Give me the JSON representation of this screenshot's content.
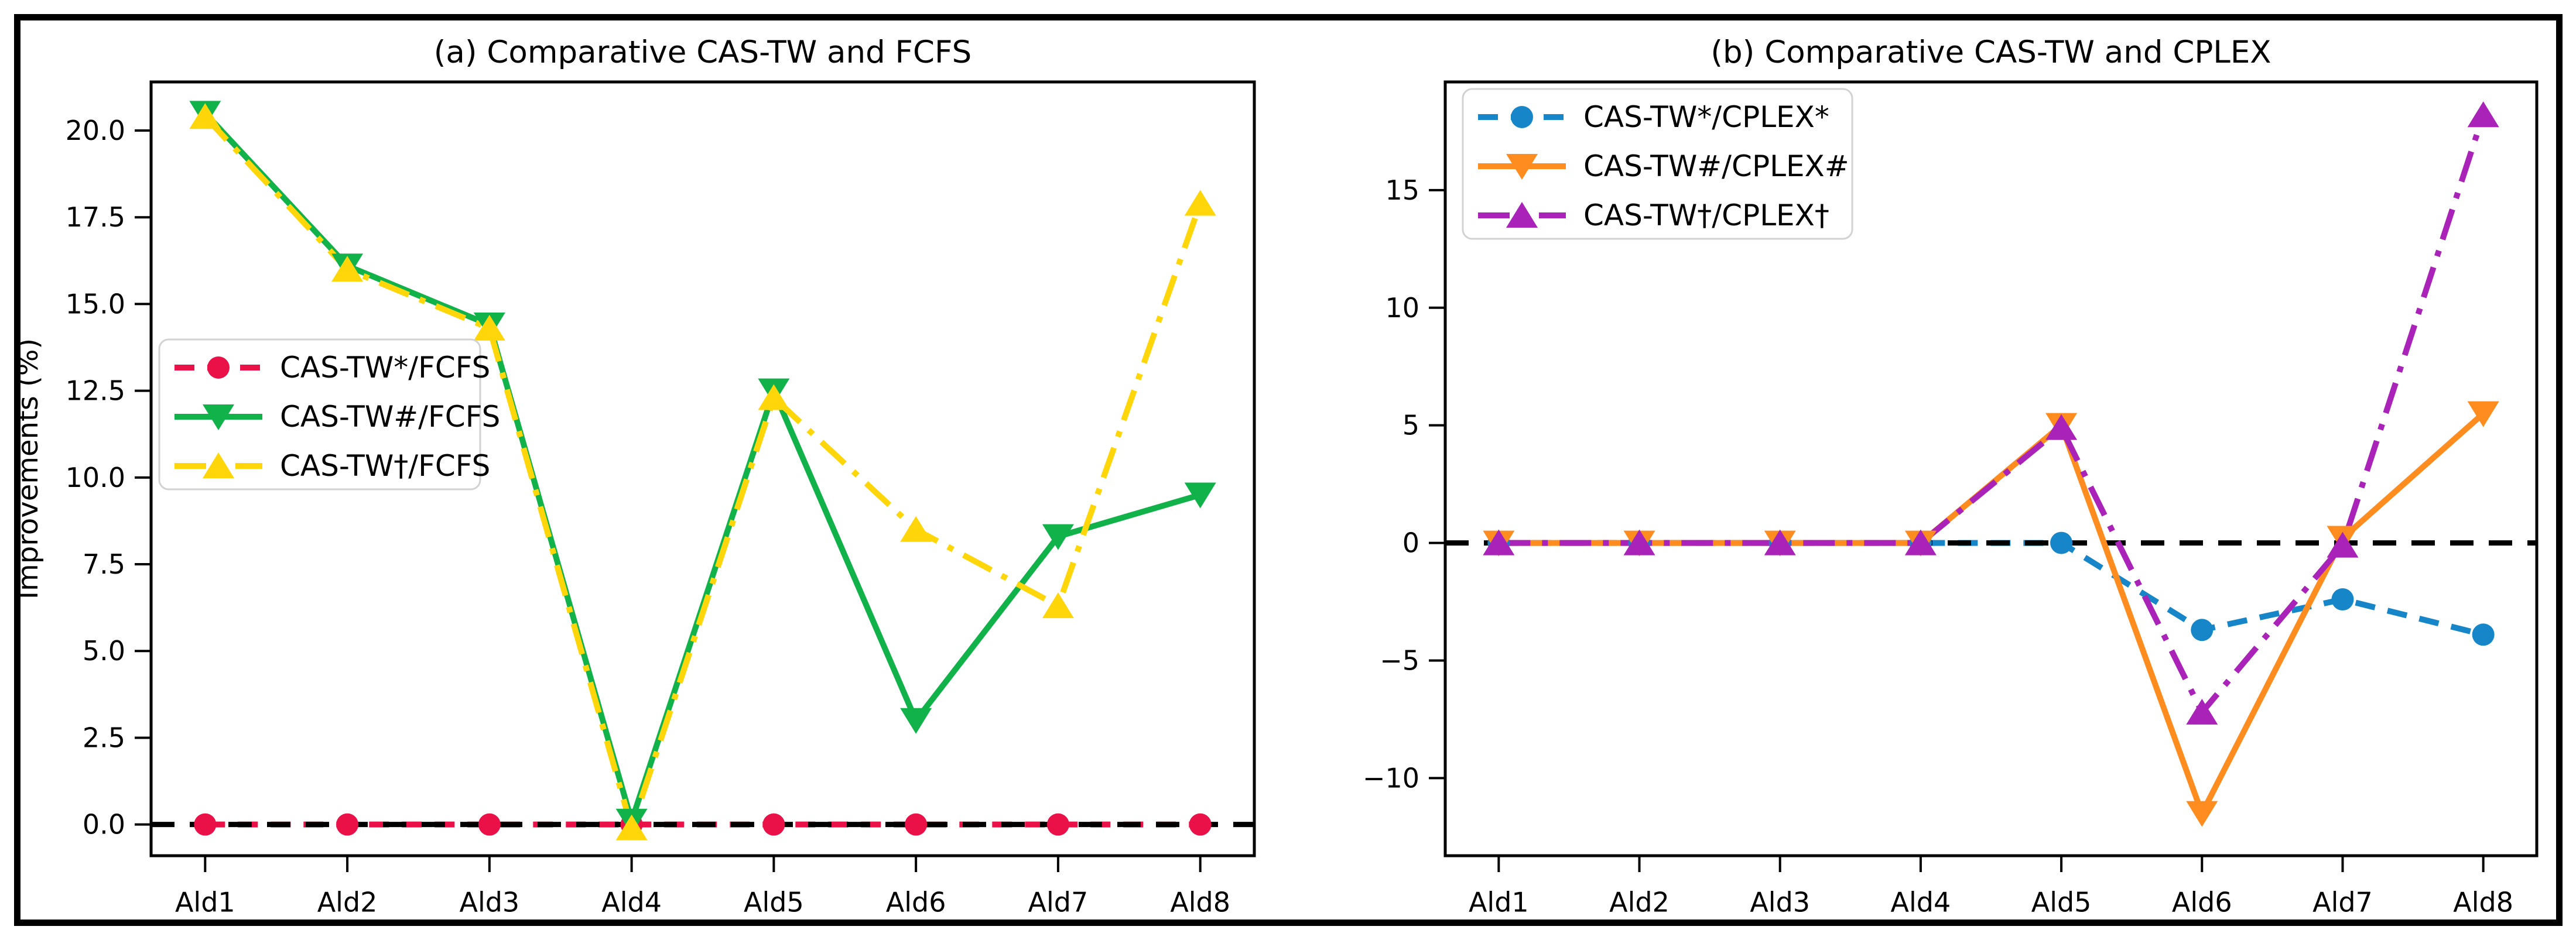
{
  "figure": {
    "background": "#ffffff",
    "border_color": "#000000",
    "zero_line_color": "#000000",
    "legend_border_color": "#d2d2d2"
  },
  "chart_data": [
    {
      "type": "line",
      "panel": "a",
      "title": "(a) Comparative CAS-TW and FCFS",
      "xlabel": "",
      "ylabel": "Improvements (%)",
      "categories": [
        "Ald1",
        "Ald2",
        "Ald3",
        "Ald4",
        "Ald5",
        "Ald6",
        "Ald7",
        "Ald8"
      ],
      "ylim": [
        -0.9,
        21.4
      ],
      "yticks": [
        {
          "v": 0,
          "label": "0.0"
        },
        {
          "v": 2.5,
          "label": "2.5"
        },
        {
          "v": 5,
          "label": "5.0"
        },
        {
          "v": 7.5,
          "label": "7.5"
        },
        {
          "v": 10,
          "label": "10.0"
        },
        {
          "v": 12.5,
          "label": "12.5"
        },
        {
          "v": 15,
          "label": "15.0"
        },
        {
          "v": 17.5,
          "label": "17.5"
        },
        {
          "v": 20,
          "label": "20.0"
        }
      ],
      "zero_line": true,
      "grid": false,
      "legend_position": "center-left",
      "series": [
        {
          "name": "CAS-TW*/FCFS",
          "color": "#ea1048",
          "line": "dashed",
          "marker": "circle",
          "values": [
            0,
            0,
            0,
            0,
            0,
            0,
            0,
            0
          ]
        },
        {
          "name": "CAS-TW#/FCFS",
          "color": "#12b24b",
          "line": "solid",
          "marker": "triangle-down",
          "values": [
            20.5,
            16.1,
            14.4,
            0.1,
            12.5,
            3.0,
            8.3,
            9.5
          ]
        },
        {
          "name": "CAS-TW†/FCFS",
          "color": "#ffd60a",
          "line": "dashdot",
          "marker": "triangle-up",
          "values": [
            20.4,
            16.0,
            14.3,
            -0.1,
            12.3,
            8.5,
            6.3,
            17.9
          ]
        }
      ]
    },
    {
      "type": "line",
      "panel": "b",
      "title": "(b) Comparative CAS-TW and CPLEX",
      "xlabel": "",
      "ylabel": "",
      "categories": [
        "Ald1",
        "Ald2",
        "Ald3",
        "Ald4",
        "Ald5",
        "Ald6",
        "Ald7",
        "Ald8"
      ],
      "ylim": [
        -13.3,
        19.6
      ],
      "yticks": [
        {
          "v": -10,
          "label": "−10"
        },
        {
          "v": -5,
          "label": "−5"
        },
        {
          "v": 0,
          "label": "0"
        },
        {
          "v": 5,
          "label": "5"
        },
        {
          "v": 10,
          "label": "10"
        },
        {
          "v": 15,
          "label": "15"
        }
      ],
      "zero_line": true,
      "grid": false,
      "legend_position": "top-left",
      "series": [
        {
          "name": "CAS-TW*/CPLEX*",
          "color": "#1786c9",
          "line": "dashed",
          "marker": "circle",
          "values": [
            0,
            0,
            0,
            0,
            0.0,
            -3.7,
            -2.4,
            -3.9
          ]
        },
        {
          "name": "CAS-TW#/CPLEX#",
          "color": "#ff8c1e",
          "line": "solid",
          "marker": "triangle-down",
          "values": [
            0,
            0,
            0,
            0,
            5.0,
            -11.5,
            0.2,
            5.5
          ]
        },
        {
          "name": "CAS-TW†/CPLEX†",
          "color": "#aa23b9",
          "line": "dashdot",
          "marker": "triangle-up",
          "values": [
            0,
            0,
            0,
            0,
            4.9,
            -7.2,
            -0.1,
            18.2
          ]
        }
      ]
    }
  ]
}
